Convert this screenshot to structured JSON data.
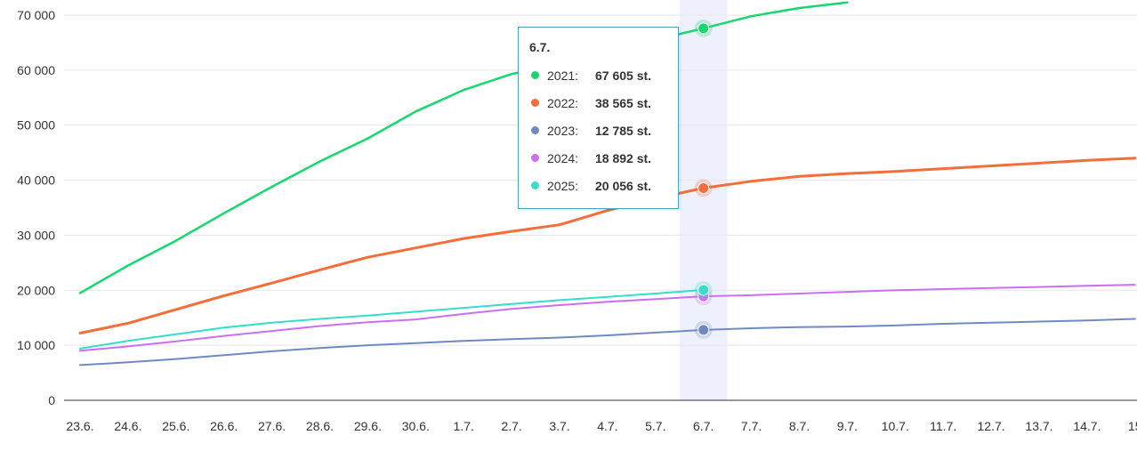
{
  "chart_data": {
    "type": "line",
    "categories": [
      "23.6.",
      "24.6.",
      "25.6.",
      "26.6.",
      "27.6.",
      "28.6.",
      "29.6.",
      "30.6.",
      "1.7.",
      "2.7.",
      "3.7.",
      "4.7.",
      "5.7.",
      "6.7.",
      "7.7.",
      "8.7.",
      "9.7.",
      "10.7.",
      "11.7.",
      "12.7.",
      "13.7.",
      "14.7.",
      "15"
    ],
    "y_ticks": [
      "0",
      "10 000",
      "20 000",
      "30 000",
      "40 000",
      "50 000",
      "60 000",
      "70 000"
    ],
    "ylim": [
      0,
      70000
    ],
    "highlight_category": "6.7.",
    "series": [
      {
        "name": "2021",
        "color": "#17d86e",
        "values": [
          19500,
          24500,
          29000,
          34000,
          38800,
          43400,
          47600,
          52500,
          56400,
          59300,
          61200,
          63400,
          65500,
          67605,
          69800,
          71300,
          72300,
          null,
          null,
          null,
          null,
          null,
          null
        ]
      },
      {
        "name": "2022",
        "color": "#f56d39",
        "values": [
          12200,
          14000,
          16500,
          19000,
          21300,
          23700,
          26000,
          27700,
          29400,
          30700,
          31900,
          34500,
          36700,
          38565,
          39800,
          40700,
          41200,
          41600,
          42100,
          42600,
          43100,
          43600,
          44000
        ]
      },
      {
        "name": "2023",
        "color": "#6f8ac3",
        "values": [
          6400,
          6900,
          7500,
          8200,
          8900,
          9500,
          10000,
          10400,
          10800,
          11100,
          11400,
          11800,
          12300,
          12785,
          13100,
          13300,
          13400,
          13600,
          13900,
          14100,
          14300,
          14500,
          14800
        ]
      },
      {
        "name": "2024",
        "color": "#cb6ff0",
        "values": [
          9000,
          9800,
          10700,
          11700,
          12600,
          13500,
          14200,
          14700,
          15700,
          16600,
          17300,
          17900,
          18400,
          18892,
          19100,
          19400,
          19700,
          20000,
          20200,
          20400,
          20600,
          20800,
          21000
        ]
      },
      {
        "name": "2025",
        "color": "#35ddcb",
        "values": [
          9400,
          10800,
          12000,
          13200,
          14100,
          14800,
          15400,
          16100,
          16800,
          17500,
          18200,
          18800,
          19400,
          20056,
          null,
          null,
          null,
          null,
          null,
          null,
          null,
          null,
          null
        ]
      }
    ]
  },
  "tooltip": {
    "title": "6.7.",
    "rows": [
      {
        "year": "2021:",
        "value": "67 605 st.",
        "color": "#17d86e"
      },
      {
        "year": "2022:",
        "value": "38 565 st.",
        "color": "#f56d39"
      },
      {
        "year": "2023:",
        "value": "12 785 st.",
        "color": "#6f8ac3"
      },
      {
        "year": "2024:",
        "value": "18 892 st.",
        "color": "#cb6ff0"
      },
      {
        "year": "2025:",
        "value": "20 056 st.",
        "color": "#35ddcb"
      }
    ]
  }
}
